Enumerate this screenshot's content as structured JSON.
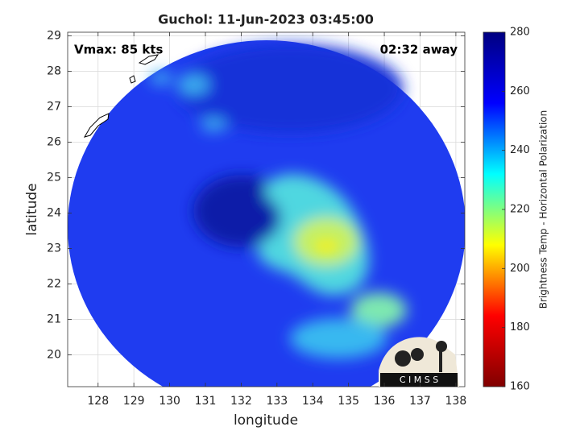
{
  "chart_data": {
    "type": "image",
    "title": "Guchol: 11-Jun-2023 03:45:00",
    "annotations": [
      "Vmax: 85 kts",
      "02:32 away"
    ],
    "xlabel": "longitude",
    "ylabel": "latitude",
    "xlim": [
      127.15,
      138.25
    ],
    "ylim": [
      19.1,
      29.1
    ],
    "xticks": [
      128,
      129,
      130,
      131,
      132,
      133,
      134,
      135,
      136,
      137,
      138
    ],
    "yticks": [
      20,
      21,
      22,
      23,
      24,
      25,
      26,
      27,
      28,
      29
    ],
    "grid": true,
    "colorbar": {
      "label": "Brightness Temp - Horizontal Polarization",
      "lim": [
        160,
        280
      ],
      "ticks": [
        160,
        180,
        200,
        220,
        240,
        260,
        280
      ],
      "colormap": [
        "#800000",
        "#ff0000",
        "#ffff00",
        "#00ffff",
        "#0000ff",
        "#000080"
      ]
    },
    "logo": "C I M S S"
  }
}
